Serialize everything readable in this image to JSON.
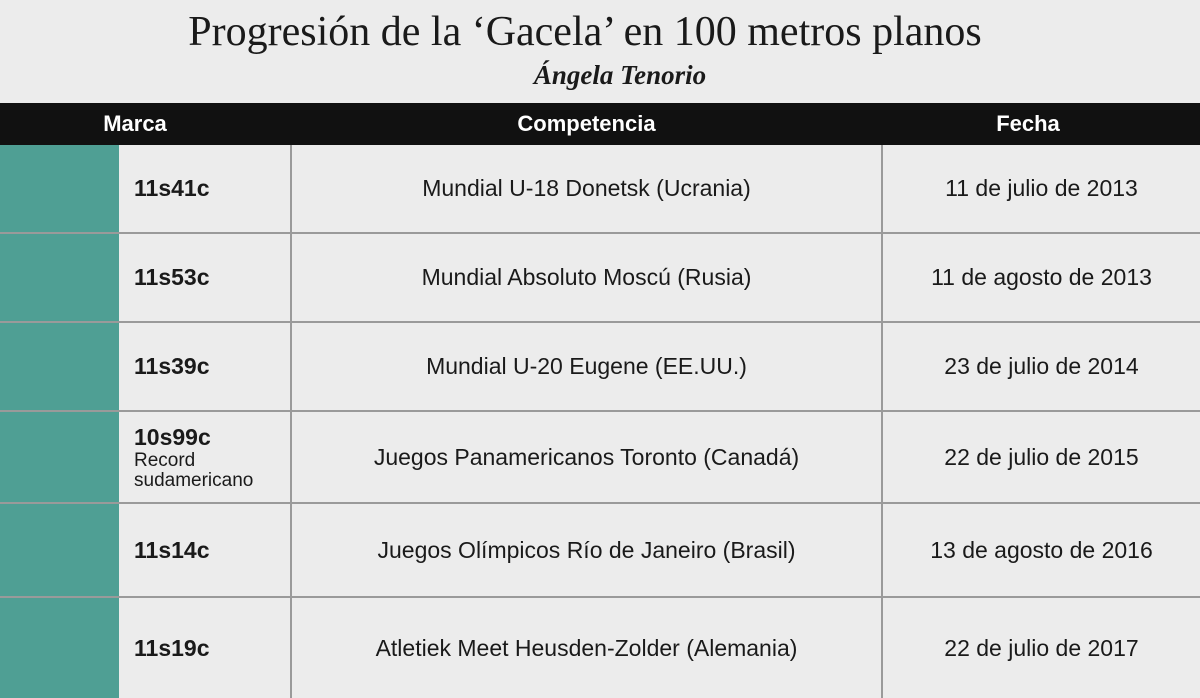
{
  "header": {
    "title": "Progresión de la ‘Gacela’ en 100 metros planos",
    "subtitle": "Ángela Tenorio"
  },
  "table": {
    "columns": [
      "Marca",
      "Competencia",
      "Fecha"
    ],
    "rows": [
      {
        "mark": "11s41c",
        "competition": "Mundial U-18 Donetsk (Ucrania)",
        "date": "11 de julio de 2013"
      },
      {
        "mark": "11s53c",
        "competition": "Mundial Absoluto Moscú (Rusia)",
        "date": "11 de agosto de 2013"
      },
      {
        "mark": "11s39c",
        "competition": "Mundial U-20 Eugene (EE.UU.)",
        "date": "23 de julio de 2014"
      },
      {
        "mark": "10s99c",
        "note": "Record sudamericano",
        "competition": "Juegos Panamericanos Toronto (Canadá)",
        "date": "22 de julio de 2015"
      },
      {
        "mark": "11s14c",
        "competition": "Juegos Olímpicos Río de Janeiro (Brasil)",
        "date": "13 de agosto de 2016"
      },
      {
        "mark": "11s19c",
        "competition": "Atletiek Meet Heusden-Zolder (Alemania)",
        "date": "22 de julio de 2017"
      }
    ]
  }
}
